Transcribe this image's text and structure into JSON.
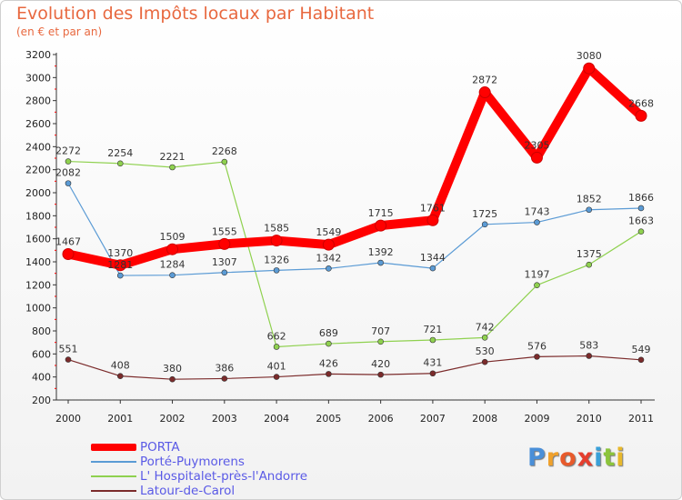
{
  "title": "Evolution des Impôts locaux par Habitant",
  "subtitle": "(en € et par an)",
  "chart_data": {
    "type": "line",
    "title": "Evolution des Impôts locaux par Habitant",
    "subtitle": "(en € et par an)",
    "xlabel": "",
    "ylabel": "",
    "ylim": [
      200,
      3200
    ],
    "yticks": [
      200,
      400,
      600,
      800,
      1000,
      1200,
      1400,
      1600,
      1800,
      2000,
      2200,
      2400,
      2600,
      2800,
      3000,
      3200
    ],
    "grid": false,
    "categories": [
      "2000",
      "2001",
      "2002",
      "2003",
      "2004",
      "2005",
      "2006",
      "2007",
      "2008",
      "2009",
      "2010",
      "2011"
    ],
    "series": [
      {
        "name": "PORTA",
        "color": "#ff0000",
        "values": [
          1467,
          1370,
          1509,
          1555,
          1585,
          1549,
          1715,
          1761,
          2872,
          2305,
          3080,
          2668
        ]
      },
      {
        "name": "Porté-Puymorens",
        "color": "#5b9bd5",
        "values": [
          2082,
          1281,
          1284,
          1307,
          1326,
          1342,
          1392,
          1344,
          1725,
          1743,
          1852,
          1866
        ]
      },
      {
        "name": "L' Hospitalet-près-l'Andorre",
        "color": "#8fd14f",
        "values": [
          2272,
          2254,
          2221,
          2268,
          662,
          689,
          707,
          721,
          742,
          1197,
          1375,
          1663
        ]
      },
      {
        "name": "Latour-de-Carol",
        "color": "#7b2b2b",
        "values": [
          551,
          408,
          380,
          386,
          401,
          426,
          420,
          431,
          530,
          576,
          583,
          549
        ]
      }
    ],
    "legend_position": "bottom-left"
  },
  "legend": [
    {
      "label": "PORTA"
    },
    {
      "label": "Porté-Puymorens"
    },
    {
      "label": "L' Hospitalet-près-l'Andorre"
    },
    {
      "label": "Latour-de-Carol"
    }
  ],
  "logo": {
    "letters": [
      "P",
      "r",
      "o",
      "x",
      "i",
      "t",
      "i"
    ],
    "colors": [
      "#4a8fd8",
      "#f0a12b",
      "#e85a2b",
      "#e53e2e",
      "#3aa0d8",
      "#8cc43c",
      "#e8b82b"
    ]
  }
}
